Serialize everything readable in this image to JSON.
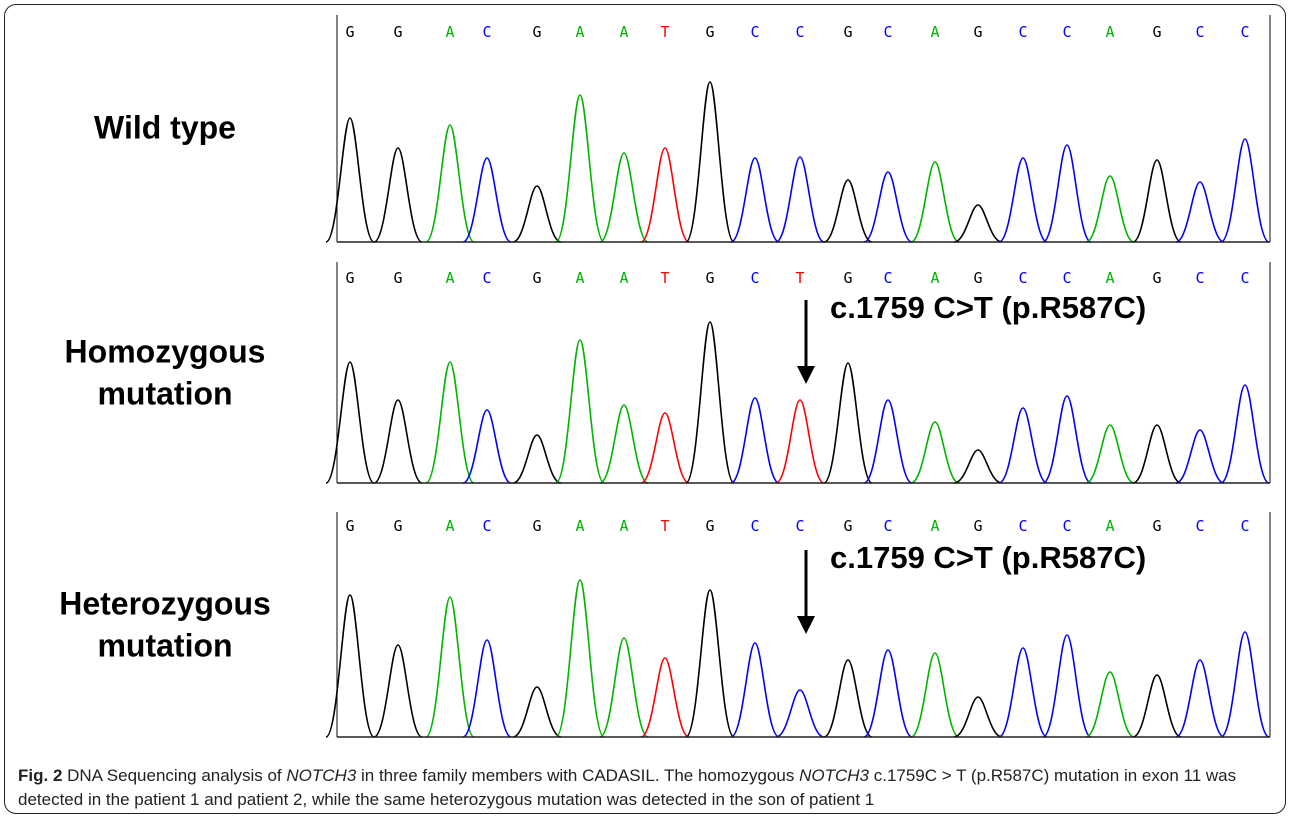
{
  "panels": [
    {
      "label_lines": [
        "Wild type"
      ],
      "bases": [
        "G",
        "G",
        "A",
        "C",
        "G",
        "A",
        "A",
        "T",
        "G",
        "C",
        "C",
        "G",
        "C",
        "A",
        "G",
        "C",
        "C",
        "A",
        "G",
        "C",
        "C"
      ]
    },
    {
      "label_lines": [
        "Homozygous",
        "mutation"
      ],
      "bases": [
        "G",
        "G",
        "A",
        "C",
        "G",
        "A",
        "A",
        "T",
        "G",
        "C",
        "T",
        "G",
        "C",
        "A",
        "G",
        "C",
        "C",
        "A",
        "G",
        "C",
        "C"
      ],
      "annotation": "c.1759 C>T (p.R587C)"
    },
    {
      "label_lines": [
        "Heterozygous",
        "mutation"
      ],
      "bases": [
        "G",
        "G",
        "A",
        "C",
        "G",
        "A",
        "A",
        "T",
        "G",
        "C",
        "C",
        "G",
        "C",
        "A",
        "G",
        "C",
        "C",
        "A",
        "G",
        "C",
        "C"
      ],
      "annotation": "c.1759 C>T (p.R587C)"
    }
  ],
  "base_colors": {
    "G": "#000000",
    "A": "#00b400",
    "C": "#0000ff",
    "T": "#ff0000"
  },
  "caption": {
    "label": "Fig. 2",
    "parts": [
      {
        "text": " DNA Sequencing analysis of "
      },
      {
        "text": "NOTCH3",
        "italic": true
      },
      {
        "text": " in three family members with CADASIL. The homozygous "
      },
      {
        "text": "NOTCH3",
        "italic": true
      },
      {
        "text": " c.1759C > T (p.R587C) mutation in exon 11 was detected in the patient 1 and patient 2, while the same heterozygous mutation was detected in the son of patient 1"
      }
    ]
  }
}
